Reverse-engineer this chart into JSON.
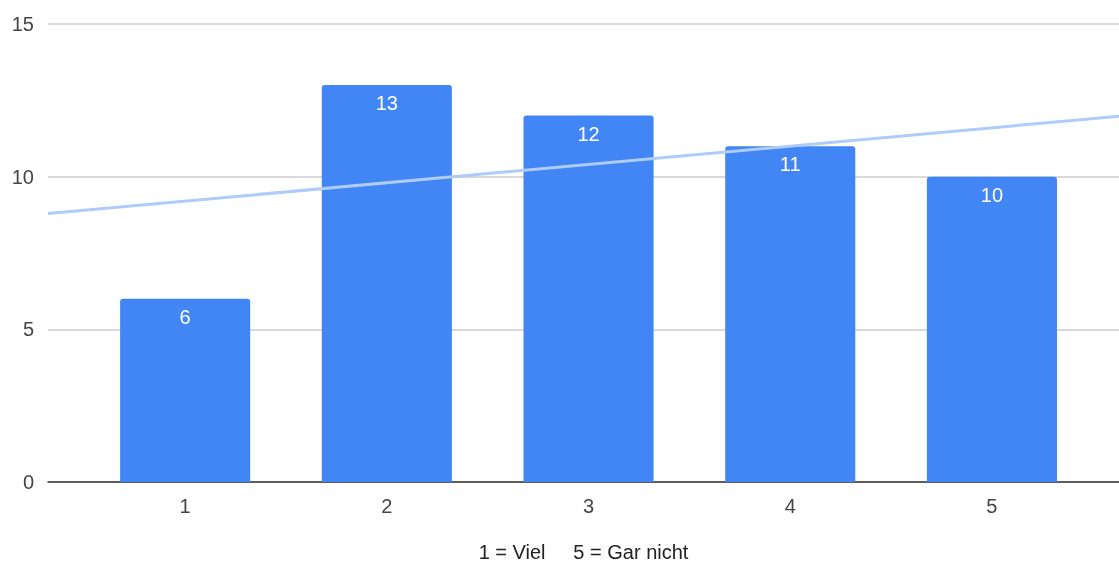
{
  "chart_data": {
    "type": "bar",
    "xlabel": "1 = Viel     5 = Gar nicht",
    "x": [
      1,
      2,
      3,
      4,
      5
    ],
    "xlim": [
      0.32,
      5.63
    ],
    "xticks": [
      1,
      2,
      3,
      4,
      5
    ],
    "series": [
      {
        "color": "#4285f4",
        "values": [
          6,
          13,
          12,
          11,
          10
        ],
        "value_labels": [
          "6",
          "13",
          "12",
          "11",
          "10"
        ]
      },
      {
        "type": "line",
        "color": "#aecbfa",
        "x": [
          0.32,
          5.63
        ],
        "values": [
          8.79,
          11.98
        ],
        "marker": "none"
      }
    ],
    "ylim": [
      0,
      15
    ],
    "yticks": [
      0,
      5,
      10,
      15
    ],
    "grid": "y"
  }
}
